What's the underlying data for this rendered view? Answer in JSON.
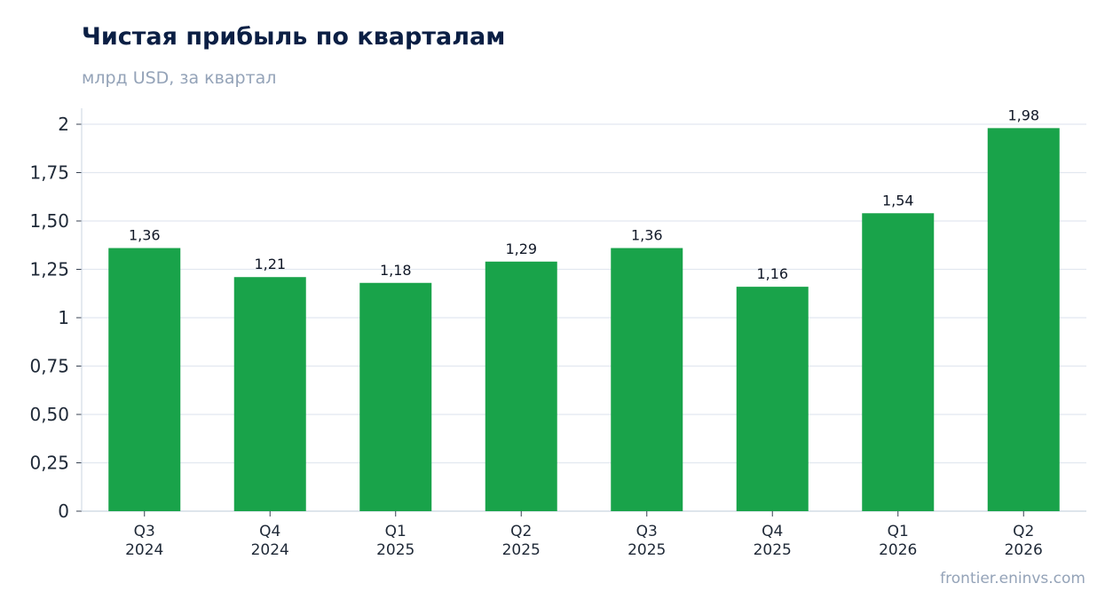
{
  "chart_data": {
    "type": "bar",
    "title": "Чистая прибыль по кварталам",
    "subtitle": "млрд USD, за квартал",
    "categories": [
      [
        "Q3",
        "2024"
      ],
      [
        "Q4",
        "2024"
      ],
      [
        "Q1",
        "2025"
      ],
      [
        "Q2",
        "2025"
      ],
      [
        "Q3",
        "2025"
      ],
      [
        "Q4",
        "2025"
      ],
      [
        "Q1",
        "2026"
      ],
      [
        "Q2",
        "2026"
      ]
    ],
    "values": [
      1.36,
      1.21,
      1.18,
      1.29,
      1.36,
      1.16,
      1.54,
      1.98
    ],
    "value_labels": [
      "1,36",
      "1,21",
      "1,18",
      "1,29",
      "1,36",
      "1,16",
      "1,54",
      "1,98"
    ],
    "ylim": [
      0,
      2
    ],
    "y_ticks": [
      {
        "value": 0,
        "label": "0"
      },
      {
        "value": 0.25,
        "label": "0,25"
      },
      {
        "value": 0.5,
        "label": "0,50"
      },
      {
        "value": 0.75,
        "label": "0,75"
      },
      {
        "value": 1,
        "label": "1"
      },
      {
        "value": 1.25,
        "label": "1,25"
      },
      {
        "value": 1.5,
        "label": "1,50"
      },
      {
        "value": 1.75,
        "label": "1,75"
      },
      {
        "value": 2,
        "label": "2"
      }
    ],
    "xlabel": "",
    "ylabel": "",
    "grid": true,
    "colors": {
      "bar": "#19a34a",
      "grid": "#e2e8f0",
      "axis": "#cbd5e1"
    }
  },
  "source": "frontier.eninvs.com"
}
